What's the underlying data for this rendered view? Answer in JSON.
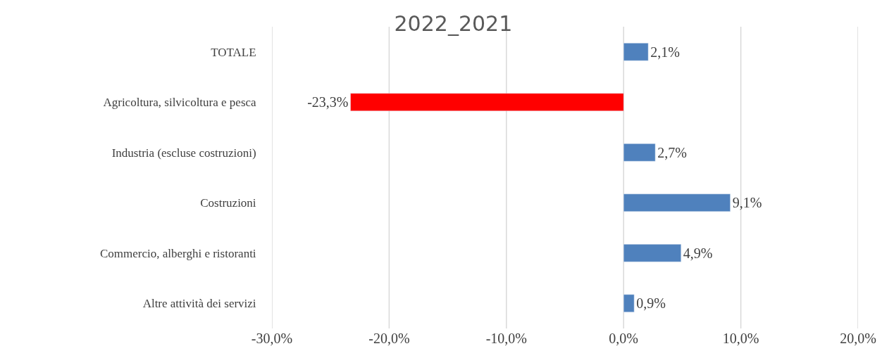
{
  "chart_data": {
    "type": "bar",
    "orientation": "horizontal",
    "title": "2022_2021",
    "categories": [
      "TOTALE",
      "Agricoltura, silvicoltura e pesca",
      "Industria (escluse costruzioni)",
      "Costruzioni",
      "Commercio, alberghi e ristoranti",
      "Altre attività dei servizi"
    ],
    "values": [
      2.1,
      -23.3,
      2.7,
      9.1,
      4.9,
      0.9
    ],
    "colors": [
      "#4f81bd",
      "#ff0000",
      "#4f81bd",
      "#4f81bd",
      "#4f81bd",
      "#4f81bd"
    ],
    "value_labels": [
      "2,1%",
      "-23,3%",
      "2,7%",
      "9,1%",
      "4,9%",
      "0,9%"
    ],
    "xlim": [
      -30,
      20
    ],
    "xticks": [
      {
        "value": -30,
        "label": "-30,0%"
      },
      {
        "value": -20,
        "label": "-20,0%"
      },
      {
        "value": -10,
        "label": "-10,0%"
      },
      {
        "value": 0,
        "label": "0,0%"
      },
      {
        "value": 10,
        "label": "10,0%"
      },
      {
        "value": 20,
        "label": "20,0%"
      }
    ],
    "grid": "x"
  }
}
